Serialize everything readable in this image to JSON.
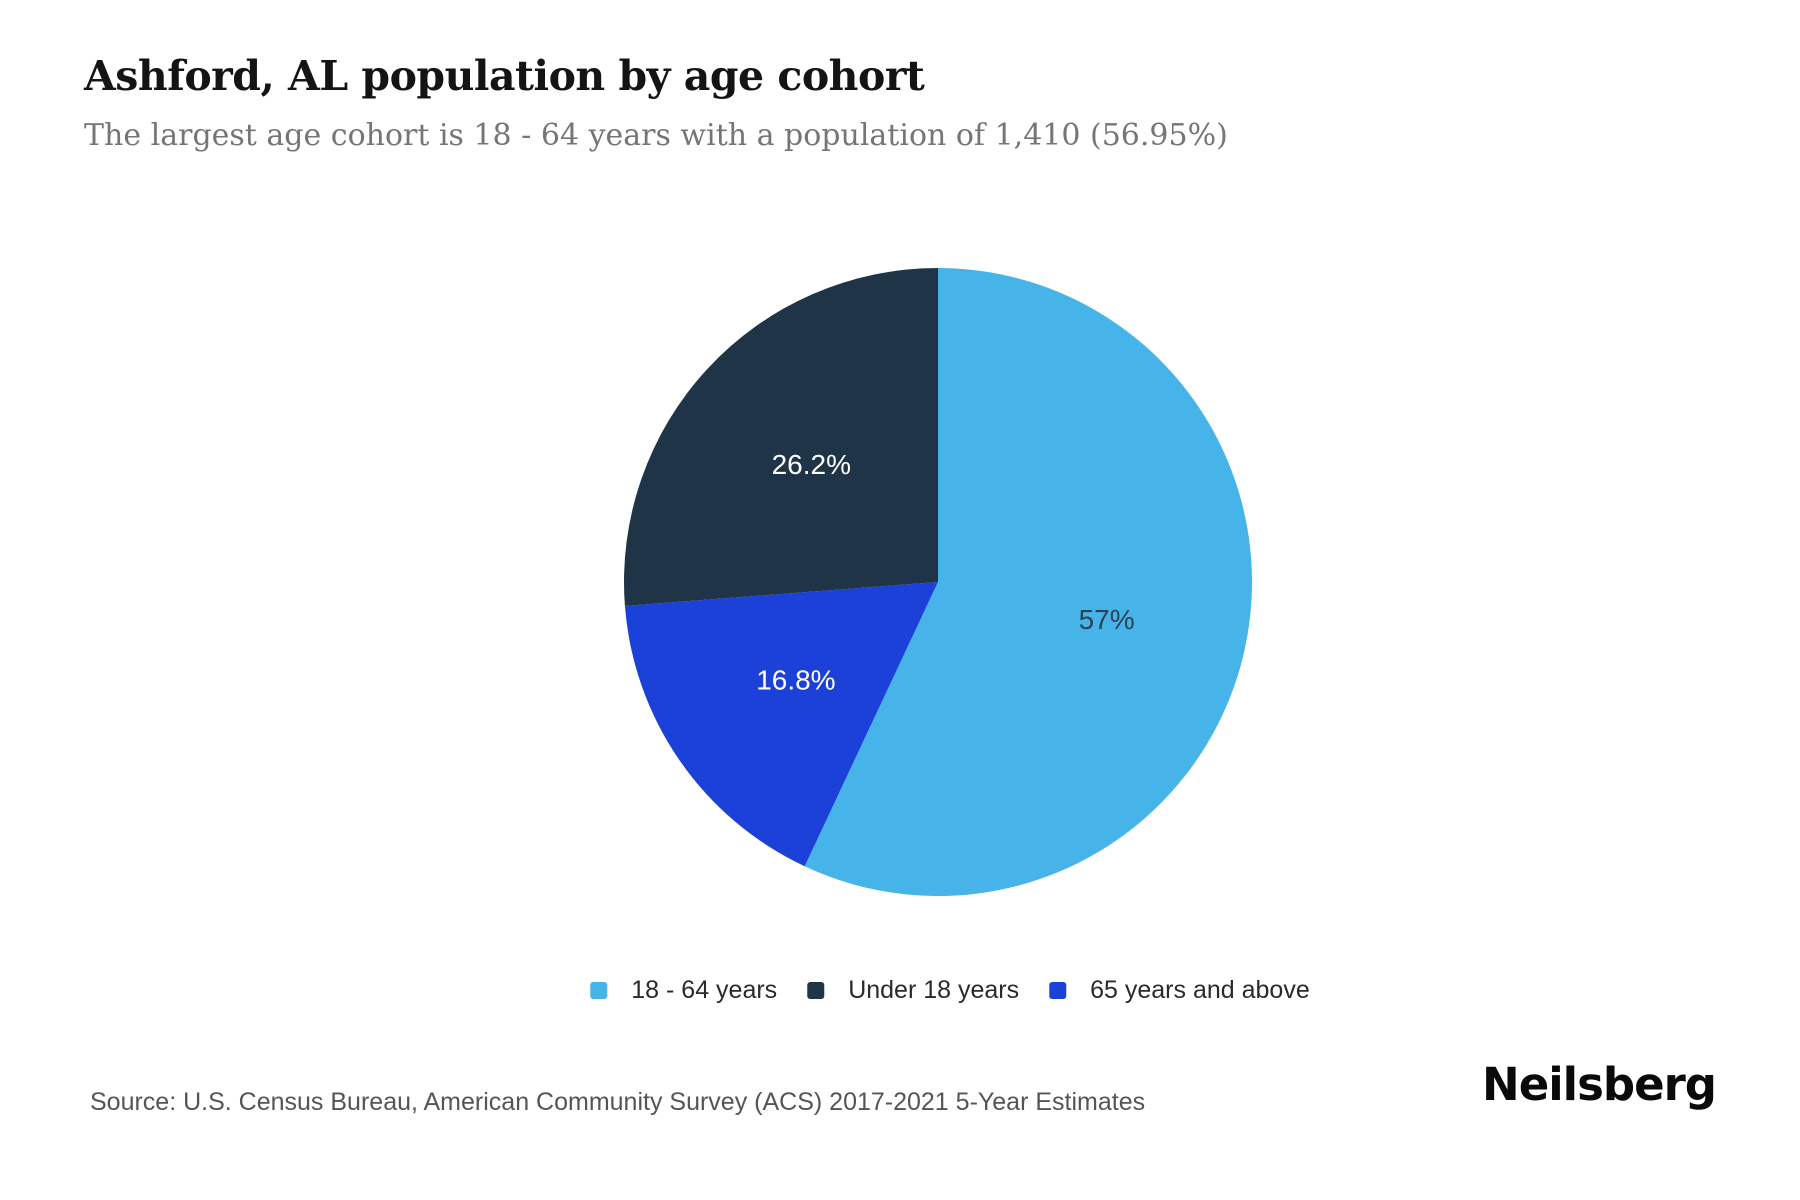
{
  "header": {
    "title": "Ashford, AL population by age cohort",
    "subtitle": "The largest age cohort is 18 - 64 years with a population of 1,410 (56.95%)"
  },
  "chart_data": {
    "type": "pie",
    "title": "Ashford, AL population by age cohort",
    "slices": [
      {
        "label": "18 - 64 years",
        "value": 56.95,
        "display": "57%",
        "color": "#47b4e9",
        "label_color": "#2c4257"
      },
      {
        "label": "Under 18 years",
        "value": 26.2,
        "display": "26.2%",
        "color": "#1f3447",
        "label_color": "#ffffff"
      },
      {
        "label": "65 years and above",
        "value": 16.8,
        "display": "16.8%",
        "color": "#1c41d9",
        "label_color": "#ffffff"
      }
    ],
    "clockwise_from_top_order": [
      "18 - 64 years",
      "65 years and above",
      "Under 18 years"
    ],
    "legend_position": "bottom",
    "largest_cohort": {
      "label": "18 - 64 years",
      "population": "1,410",
      "share": "56.95%"
    }
  },
  "footer": {
    "source": "Source: U.S. Census Bureau, American Community Survey (ACS) 2017-2021 5-Year Estimates",
    "brand": "Neilsberg"
  }
}
